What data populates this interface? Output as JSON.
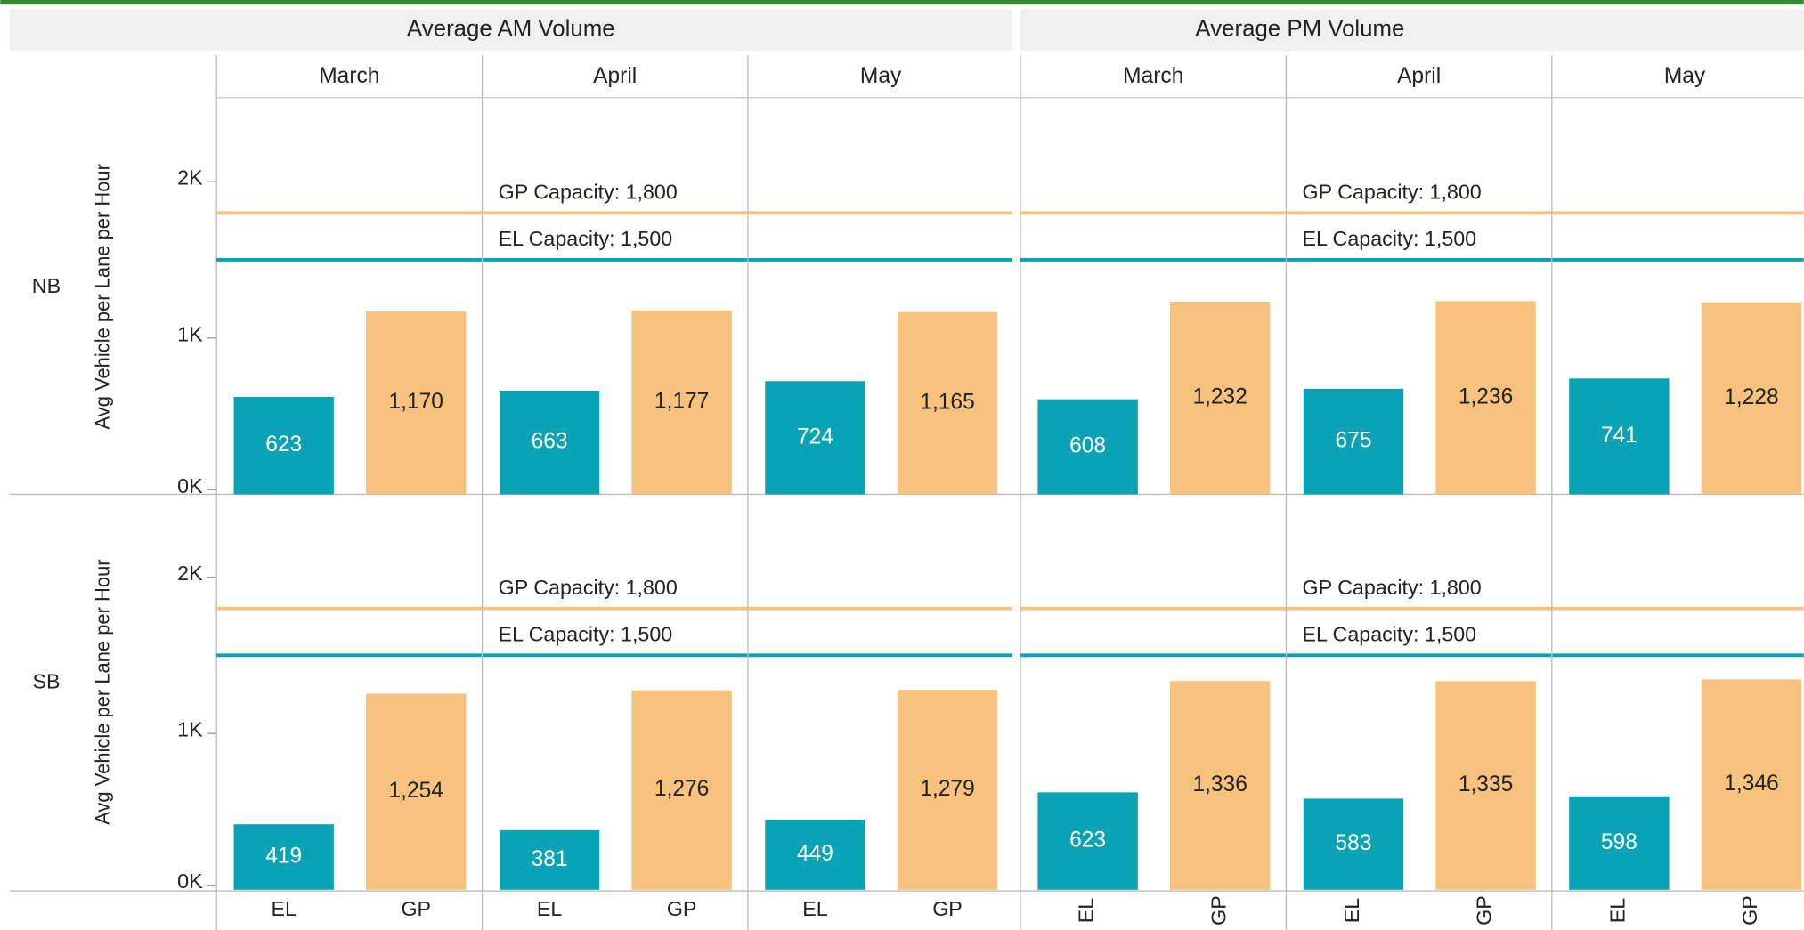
{
  "chart_data": {
    "type": "bar",
    "y_label": "Avg Vehicle per Lane per Hour",
    "ylim": [
      0,
      2530
    ],
    "yticks": [
      {
        "value": 0,
        "label": "0K"
      },
      {
        "value": 1000,
        "label": "1K"
      },
      {
        "value": 2000,
        "label": "2K"
      }
    ],
    "categories": [
      "EL",
      "GP"
    ],
    "colors": [
      "#0aa3b5",
      "#f6c27e"
    ],
    "columns": [
      "March",
      "April",
      "May"
    ],
    "rows": [
      "NB",
      "SB"
    ],
    "reference_lines": [
      {
        "label": "GP Capacity: 1,800",
        "value": 1800,
        "color": "#f6c27e"
      },
      {
        "label": "EL Capacity: 1,500",
        "value": 1500,
        "color": "#0aa3b5"
      }
    ],
    "panels": [
      {
        "title": "Average AM Volume",
        "values": [
          [
            [
              623,
              1170
            ],
            [
              663,
              1177
            ],
            [
              724,
              1165
            ]
          ],
          [
            [
              419,
              1254
            ],
            [
              381,
              1276
            ],
            [
              449,
              1279
            ]
          ]
        ],
        "value_labels": [
          [
            [
              "623",
              "1,170"
            ],
            [
              "663",
              "1,177"
            ],
            [
              "724",
              "1,165"
            ]
          ],
          [
            [
              "419",
              "1,254"
            ],
            [
              "381",
              "1,276"
            ],
            [
              "449",
              "1,279"
            ]
          ]
        ]
      },
      {
        "title": "Average PM Volume",
        "values": [
          [
            [
              608,
              1232
            ],
            [
              675,
              1236
            ],
            [
              741,
              1228
            ]
          ],
          [
            [
              623,
              1336
            ],
            [
              583,
              1335
            ],
            [
              598,
              1346
            ]
          ]
        ],
        "value_labels": [
          [
            [
              "608",
              "1,232"
            ],
            [
              "675",
              "1,236"
            ],
            [
              "741",
              "1,228"
            ]
          ],
          [
            [
              "623",
              "1,336"
            ],
            [
              "583",
              "1,335"
            ],
            [
              "598",
              "1,346"
            ]
          ]
        ]
      }
    ]
  }
}
